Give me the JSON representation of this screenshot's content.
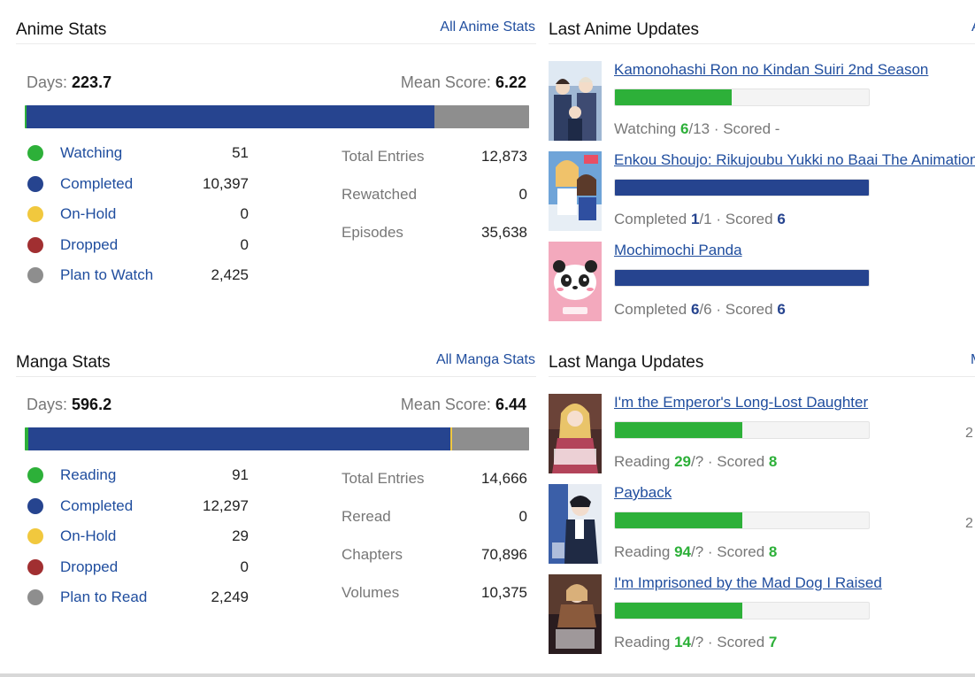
{
  "colors": {
    "watching": "#2db039",
    "completed": "#26448f",
    "on_hold": "#f1c83e",
    "dropped": "#a12f31",
    "plan": "#8e8e8e",
    "link": "#1f4d9e"
  },
  "anime_stats": {
    "title": "Anime Stats",
    "link": "All Anime Stats",
    "days_label": "Days:",
    "days": "223.7",
    "mean_label": "Mean Score:",
    "mean": "6.22",
    "statuses": [
      {
        "label": "Watching",
        "count": "51",
        "color": "#2db039"
      },
      {
        "label": "Completed",
        "count": "10,397",
        "color": "#26448f"
      },
      {
        "label": "On-Hold",
        "count": "0",
        "color": "#f1c83e"
      },
      {
        "label": "Dropped",
        "count": "0",
        "color": "#a12f31"
      },
      {
        "label": "Plan to Watch",
        "count": "2,425",
        "color": "#8e8e8e"
      }
    ],
    "bar_values": [
      51,
      10397,
      0,
      0,
      2425
    ],
    "summary": [
      {
        "label": "Total Entries",
        "value": "12,873"
      },
      {
        "label": "Rewatched",
        "value": "0"
      },
      {
        "label": "Episodes",
        "value": "35,638"
      }
    ]
  },
  "manga_stats": {
    "title": "Manga Stats",
    "link": "All Manga Stats",
    "days_label": "Days:",
    "days": "596.2",
    "mean_label": "Mean Score:",
    "mean": "6.44",
    "statuses": [
      {
        "label": "Reading",
        "count": "91",
        "color": "#2db039"
      },
      {
        "label": "Completed",
        "count": "12,297",
        "color": "#26448f"
      },
      {
        "label": "On-Hold",
        "count": "29",
        "color": "#f1c83e"
      },
      {
        "label": "Dropped",
        "count": "0",
        "color": "#a12f31"
      },
      {
        "label": "Plan to Read",
        "count": "2,249",
        "color": "#8e8e8e"
      }
    ],
    "bar_values": [
      91,
      12297,
      29,
      0,
      2249
    ],
    "summary": [
      {
        "label": "Total Entries",
        "value": "14,666"
      },
      {
        "label": "Reread",
        "value": "0"
      },
      {
        "label": "Chapters",
        "value": "70,896"
      },
      {
        "label": "Volumes",
        "value": "10,375"
      }
    ]
  },
  "anime_updates": {
    "title": "Last Anime Updates",
    "link_fragment": "A",
    "items": [
      {
        "title": "Kamonohashi Ron no Kindan Suiri 2nd Season",
        "status": "Watching",
        "progress": "6",
        "total": "/13",
        "scored_label": "· Scored",
        "score": "-",
        "fraction": 0.4615,
        "color": "green",
        "date": ""
      },
      {
        "title": "Enkou Shoujo: Rikujoubu Yukki no Baai The Animation",
        "status": "Completed",
        "progress": "1",
        "total": "/1",
        "scored_label": "· Scored",
        "score": "6",
        "fraction": 1.0,
        "color": "blue",
        "date": ""
      },
      {
        "title": "Mochimochi Panda",
        "status": "Completed",
        "progress": "6",
        "total": "/6",
        "scored_label": "· Scored",
        "score": "6",
        "fraction": 1.0,
        "color": "blue",
        "date": ""
      }
    ]
  },
  "manga_updates": {
    "title": "Last Manga Updates",
    "link_fragment": "M",
    "items": [
      {
        "title": "I'm the Emperor's Long-Lost Daughter",
        "status": "Reading",
        "progress": "29",
        "total": "/?",
        "scored_label": "· Scored",
        "score": "8",
        "fraction": 0.5,
        "color": "green",
        "date": "2"
      },
      {
        "title": "Payback",
        "status": "Reading",
        "progress": "94",
        "total": "/?",
        "scored_label": "· Scored",
        "score": "8",
        "fraction": 0.5,
        "color": "green",
        "date": "2"
      },
      {
        "title": "I'm Imprisoned by the Mad Dog I Raised",
        "status": "Reading",
        "progress": "14",
        "total": "/?",
        "scored_label": "· Scored",
        "score": "7",
        "fraction": 0.5,
        "color": "green",
        "date": ""
      }
    ]
  }
}
